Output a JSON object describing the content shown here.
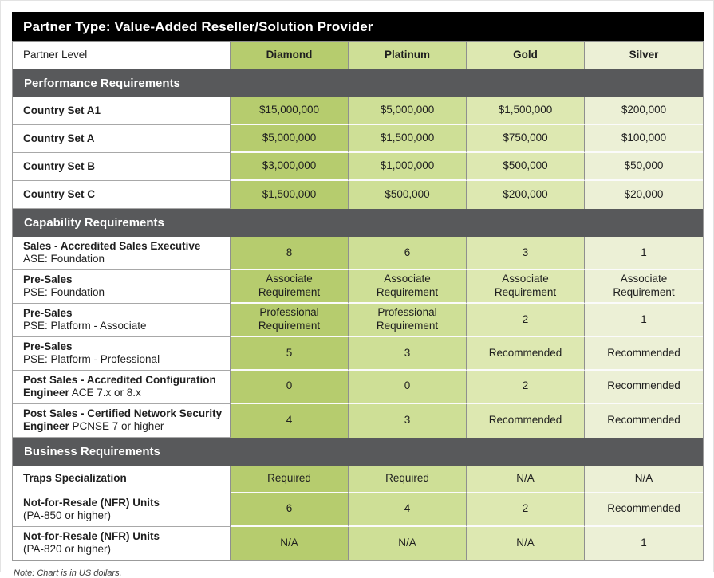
{
  "title": "Partner Type: Value-Added Reseller/Solution Provider",
  "header": {
    "label": "Partner Level",
    "levels": [
      "Diamond",
      "Platinum",
      "Gold",
      "Silver"
    ]
  },
  "colors": {
    "title_bar": "#000000",
    "section_bar": "#58595b",
    "columns": [
      "#b6cc6e",
      "#cedf96",
      "#dde8b1",
      "#ecf0d6"
    ]
  },
  "sections": [
    {
      "title": "Performance Requirements",
      "rows": [
        {
          "label": "Country Set A1",
          "sublabel": "",
          "sublabel_inline": false,
          "values": [
            "$15,000,000",
            "$5,000,000",
            "$1,500,000",
            "$200,000"
          ]
        },
        {
          "label": "Country Set A",
          "sublabel": "",
          "sublabel_inline": false,
          "values": [
            "$5,000,000",
            "$1,500,000",
            "$750,000",
            "$100,000"
          ]
        },
        {
          "label": "Country Set B",
          "sublabel": "",
          "sublabel_inline": false,
          "values": [
            "$3,000,000",
            "$1,000,000",
            "$500,000",
            "$50,000"
          ]
        },
        {
          "label": "Country Set C",
          "sublabel": "",
          "sublabel_inline": false,
          "values": [
            "$1,500,000",
            "$500,000",
            "$200,000",
            "$20,000"
          ]
        }
      ]
    },
    {
      "title": "Capability Requirements",
      "rows": [
        {
          "label": "Sales - Accredited Sales Executive",
          "sublabel": "ASE: Foundation",
          "sublabel_inline": false,
          "values": [
            "8",
            "6",
            "3",
            "1"
          ]
        },
        {
          "label": "Pre-Sales",
          "sublabel": "PSE: Foundation",
          "sublabel_inline": false,
          "values": [
            "Associate Requirement",
            "Associate Requirement",
            "Associate Requirement",
            "Associate Requirement"
          ]
        },
        {
          "label": "Pre-Sales",
          "sublabel": "PSE: Platform - Associate",
          "sublabel_inline": false,
          "values": [
            "Professional Requirement",
            "Professional Requirement",
            "2",
            "1"
          ]
        },
        {
          "label": "Pre-Sales",
          "sublabel": "PSE: Platform - Professional",
          "sublabel_inline": false,
          "values": [
            "5",
            "3",
            "Recommended",
            "Recommended"
          ]
        },
        {
          "label": "Post Sales - Accredited Configuration Engineer",
          "sublabel": "ACE 7.x or 8.x",
          "sublabel_inline": true,
          "values": [
            "0",
            "0",
            "2",
            "Recommended"
          ]
        },
        {
          "label": "Post Sales - Certified Network Security Engineer",
          "sublabel": "PCNSE 7 or higher",
          "sublabel_inline": true,
          "values": [
            "4",
            "3",
            "Recommended",
            "Recommended"
          ]
        }
      ]
    },
    {
      "title": "Business Requirements",
      "rows": [
        {
          "label": "Traps Specialization",
          "sublabel": "",
          "sublabel_inline": false,
          "values": [
            "Required",
            "Required",
            "N/A",
            "N/A"
          ]
        },
        {
          "label": "Not-for-Resale (NFR) Units",
          "sublabel": "(PA-850 or higher)",
          "sublabel_inline": false,
          "values": [
            "6",
            "4",
            "2",
            "Recommended"
          ]
        },
        {
          "label": "Not-for-Resale (NFR) Units",
          "sublabel": "(PA-820 or higher)",
          "sublabel_inline": false,
          "values": [
            "N/A",
            "N/A",
            "N/A",
            "1"
          ]
        }
      ]
    }
  ],
  "note": "Note: Chart is in US dollars."
}
